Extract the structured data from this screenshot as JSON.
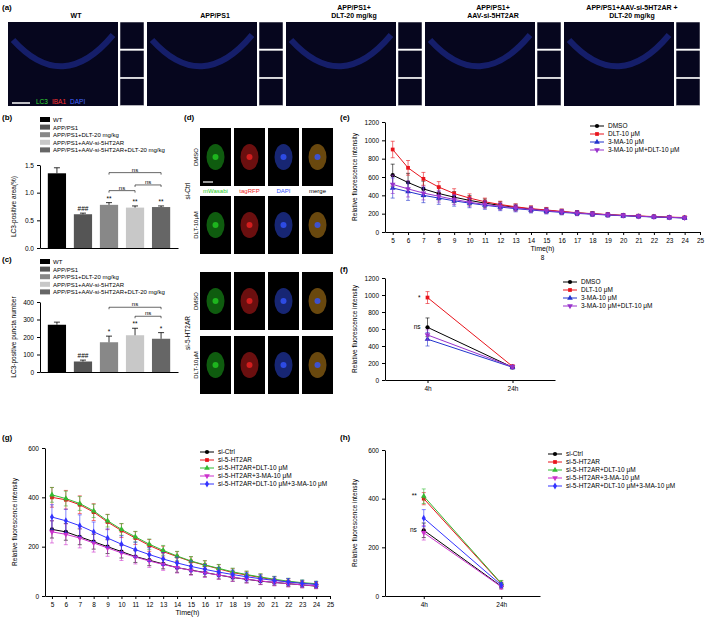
{
  "images": {
    "a": {
      "title": "(a)",
      "columns": [
        [
          "WT"
        ],
        [
          "APP/PS1"
        ],
        [
          "APP/PS1+",
          "DLT-20 mg/kg"
        ],
        [
          "APP/PS1+",
          "AAV-si-5HT2AR"
        ],
        [
          "APP/PS1+AAV-si-5HT2AR +",
          "DLT-20 mg/kg"
        ]
      ],
      "stains": [
        {
          "text": "LC3",
          "color": "#33dd33"
        },
        {
          "text": "IBA1",
          "color": "#ff3333"
        },
        {
          "text": "DAPI",
          "color": "#4466ff"
        }
      ]
    },
    "d": {
      "title": "(d)",
      "channels": [
        {
          "text": "mWasabi",
          "color": "#22cc22"
        },
        {
          "text": "tagRFP",
          "color": "#ee2222"
        },
        {
          "text": "DAPI",
          "color": "#3355ff"
        },
        {
          "text": "merge",
          "color": "#000000"
        }
      ],
      "groups": [
        "si-Ctrl",
        "si-5-HT2AR"
      ],
      "rows": [
        "DMSO",
        "DLT-10μM"
      ]
    }
  },
  "chart_data": [
    {
      "type": "bar",
      "title": "(b)",
      "y_label": "LC3-positive area(%)",
      "categories": [
        "WT",
        "APP/PS1",
        "APP/PS1+DLT-20 mg/kg",
        "APP/PS1+AAV-si-5HT2AR",
        "APP/PS1+AAV-si-5HT2AR+DLT-20 mg/kg"
      ],
      "values": [
        1.35,
        0.61,
        0.78,
        0.73,
        0.74
      ],
      "errors": [
        0.1,
        0.02,
        0.04,
        0.03,
        0.02
      ],
      "colors": [
        "#000000",
        "#555555",
        "#888888",
        "#c8c8c8",
        "#666666"
      ],
      "ylim": [
        0,
        1.5
      ],
      "yticks": [
        {
          "value": 0,
          "label": "0.0"
        },
        0.5,
        {
          "value": 1,
          "label": "1.0"
        },
        1.5
      ],
      "legend": "top",
      "tick_labels": "y",
      "annotations": [
        {
          "text": "###",
          "category": 1
        },
        {
          "text": "**",
          "category": 2
        },
        {
          "text": "**",
          "category": 3
        },
        {
          "text": "**",
          "category": 4
        },
        {
          "text": "ns",
          "from": 2,
          "to": 3
        },
        {
          "text": "ns",
          "from": 3,
          "to": 4
        },
        {
          "text": "ns",
          "from": 2,
          "to": 4
        }
      ]
    },
    {
      "type": "bar",
      "title": "(c)",
      "y_label": "LC3-positive puncta number",
      "categories": [
        "WT",
        "APP/PS1",
        "APP/PS1+DLT-20 mg/kg",
        "APP/PS1+AAV-si-5HT2AR",
        "APP/PS1+AAV-si-5HT2AR+DLT-20 mg/kg"
      ],
      "values": [
        270,
        60,
        170,
        210,
        190
      ],
      "errors": [
        15,
        8,
        35,
        40,
        35
      ],
      "colors": [
        "#000000",
        "#555555",
        "#888888",
        "#c8c8c8",
        "#666666"
      ],
      "ylim": [
        0,
        400
      ],
      "yticks": [
        0,
        100,
        200,
        300,
        400
      ],
      "legend": "top",
      "tick_labels": "y",
      "annotations": [
        {
          "text": "###",
          "category": 1
        },
        {
          "text": "*",
          "category": 2
        },
        {
          "text": "**",
          "category": 3
        },
        {
          "text": "*",
          "category": 4
        },
        {
          "text": "ns",
          "from": 3,
          "to": 4
        },
        {
          "text": "ns",
          "from": 2,
          "to": 4
        }
      ]
    },
    {
      "type": "line",
      "title": "(e)",
      "x_label": "Time(h)",
      "y_label": "Relative fluorescence intensity",
      "x": [
        5,
        6,
        7,
        8,
        9,
        10,
        11,
        12,
        13,
        14,
        15,
        16,
        17,
        18,
        19,
        20,
        21,
        22,
        23,
        24
      ],
      "xlim": [
        4.5,
        25
      ],
      "xticks": [
        5,
        6,
        7,
        8,
        9,
        10,
        11,
        12,
        13,
        14,
        15,
        16,
        17,
        18,
        19,
        20,
        21,
        22,
        23,
        24,
        25
      ],
      "ylim": [
        0,
        1200
      ],
      "yticks": [
        0,
        200,
        400,
        600,
        800,
        1000,
        1200
      ],
      "legend": "top-right",
      "series": [
        {
          "name": "DMSO",
          "color": "#000000",
          "marker": "circle",
          "values": [
            620,
            540,
            470,
            420,
            380,
            345,
            315,
            290,
            268,
            250,
            235,
            220,
            208,
            198,
            188,
            180,
            172,
            166,
            160,
            155
          ],
          "errors": [
            120,
            100,
            85,
            70,
            60,
            52,
            45,
            40,
            36,
            32,
            30,
            28,
            26,
            24,
            22,
            20,
            19,
            18,
            17,
            16
          ]
        },
        {
          "name": "DLT-10 μM",
          "color": "#e8141c",
          "marker": "square",
          "values": [
            900,
            700,
            580,
            490,
            420,
            370,
            330,
            300,
            275,
            255,
            240,
            225,
            210,
            200,
            190,
            182,
            175,
            168,
            162,
            158
          ],
          "errors": [
            90,
            80,
            70,
            60,
            52,
            46,
            40,
            36,
            32,
            30,
            28,
            26,
            24,
            22,
            21,
            20,
            19,
            18,
            17,
            16
          ]
        },
        {
          "name": "3-MA-10 μM",
          "color": "#2233cc",
          "marker": "triangle",
          "values": [
            480,
            440,
            400,
            370,
            340,
            315,
            292,
            272,
            255,
            240,
            226,
            214,
            203,
            194,
            185,
            177,
            170,
            164,
            158,
            153
          ],
          "errors": [
            110,
            95,
            80,
            68,
            58,
            50,
            44,
            39,
            35,
            32,
            29,
            27,
            25,
            23,
            21,
            20,
            19,
            18,
            17,
            16
          ]
        },
        {
          "name": "3-MA-10 μM+DLT-10 μM",
          "color": "#9933cc",
          "marker": "triangle-down",
          "values": [
            520,
            470,
            425,
            390,
            355,
            325,
            300,
            280,
            262,
            246,
            232,
            219,
            207,
            197,
            188,
            180,
            172,
            166,
            160,
            155
          ],
          "errors": [
            100,
            88,
            75,
            64,
            55,
            48,
            42,
            38,
            34,
            31,
            28,
            26,
            24,
            22,
            21,
            20,
            19,
            18,
            17,
            16
          ]
        }
      ],
      "annotations": [
        {
          "text": "8"
        }
      ]
    },
    {
      "type": "line",
      "title": "(f)",
      "y_label": "Relative fluorescence intensity",
      "categories": [
        "4h",
        "24h"
      ],
      "ylim": [
        0,
        1200
      ],
      "yticks": [
        0,
        200,
        400,
        600,
        800,
        1000,
        1200
      ],
      "legend": "right",
      "series": [
        {
          "name": "DMSO",
          "color": "#000000",
          "marker": "circle",
          "values": [
            620,
            150
          ],
          "errors": [
            110,
            20
          ]
        },
        {
          "name": "DLT-10 μM",
          "color": "#e8141c",
          "marker": "square",
          "values": [
            970,
            160
          ],
          "errors": [
            70,
            20
          ]
        },
        {
          "name": "3-MA-10 μM",
          "color": "#2233cc",
          "marker": "triangle",
          "values": [
            480,
            150
          ],
          "errors": [
            80,
            20
          ]
        },
        {
          "name": "3-MA-10 μM+DLT-10 μM",
          "color": "#9933cc",
          "marker": "triangle-down",
          "values": [
            530,
            155
          ],
          "errors": [
            60,
            20
          ]
        }
      ],
      "annotations": [
        {
          "text": "*",
          "series": 1,
          "index": 0
        },
        {
          "text": "ns",
          "series": 0,
          "index": 0
        }
      ]
    },
    {
      "type": "line",
      "title": "(g)",
      "x_label": "Time(h)",
      "y_label": "Relative fluorescence intensity",
      "x": [
        5,
        6,
        7,
        8,
        9,
        10,
        11,
        12,
        13,
        14,
        15,
        16,
        17,
        18,
        19,
        20,
        21,
        22,
        23,
        24
      ],
      "xlim": [
        4.5,
        25
      ],
      "xticks": [
        5,
        6,
        7,
        8,
        9,
        10,
        11,
        12,
        13,
        14,
        15,
        16,
        17,
        18,
        19,
        20,
        21,
        22,
        23,
        24,
        25
      ],
      "ylim": [
        0,
        600
      ],
      "yticks": [
        0,
        200,
        400,
        600
      ],
      "legend": "top-right",
      "series": [
        {
          "name": "si-Ctrl",
          "color": "#000000",
          "marker": "circle",
          "values": [
            270,
            260,
            240,
            220,
            200,
            180,
            160,
            145,
            130,
            115,
            105,
            95,
            85,
            75,
            68,
            60,
            55,
            50,
            45,
            40
          ],
          "errors": [
            35,
            34,
            32,
            30,
            28,
            26,
            24,
            22,
            20,
            19,
            18,
            17,
            16,
            15,
            14,
            13,
            12,
            12,
            11,
            10
          ]
        },
        {
          "name": "si-5-HT2AR",
          "color": "#e8141c",
          "marker": "square",
          "values": [
            400,
            390,
            370,
            340,
            300,
            265,
            235,
            205,
            180,
            160,
            140,
            125,
            110,
            95,
            85,
            75,
            65,
            58,
            52,
            48
          ],
          "errors": [
            40,
            38,
            36,
            34,
            31,
            28,
            26,
            24,
            22,
            20,
            19,
            18,
            17,
            16,
            15,
            14,
            13,
            12,
            11,
            10
          ]
        },
        {
          "name": "si-5-HT2AR+DLT-10 μM",
          "color": "#33bb33",
          "marker": "triangle",
          "values": [
            410,
            395,
            375,
            345,
            305,
            270,
            240,
            210,
            185,
            162,
            142,
            126,
            112,
            98,
            87,
            77,
            68,
            60,
            54,
            50
          ],
          "errors": [
            30,
            30,
            28,
            27,
            25,
            24,
            22,
            21,
            20,
            19,
            18,
            17,
            16,
            15,
            14,
            13,
            12,
            12,
            11,
            10
          ]
        },
        {
          "name": "si-5-HT2AR+3-MA-10 μM",
          "color": "#cc33cc",
          "marker": "triangle-down",
          "values": [
            260,
            250,
            235,
            215,
            195,
            175,
            158,
            142,
            128,
            115,
            104,
            94,
            85,
            76,
            68,
            61,
            55,
            50,
            45,
            41
          ],
          "errors": [
            45,
            42,
            40,
            37,
            34,
            31,
            28,
            26,
            24,
            22,
            20,
            19,
            18,
            17,
            16,
            15,
            14,
            13,
            12,
            11
          ]
        },
        {
          "name": "si-5-HT2AR+DLT-10 μM+3-MA-10 μM",
          "color": "#3333ff",
          "marker": "diamond",
          "values": [
            320,
            305,
            285,
            260,
            235,
            210,
            188,
            168,
            150,
            134,
            120,
            108,
            97,
            87,
            78,
            70,
            63,
            57,
            51,
            47
          ],
          "errors": [
            50,
            47,
            44,
            40,
            37,
            34,
            31,
            28,
            26,
            24,
            22,
            20,
            19,
            18,
            17,
            16,
            15,
            14,
            13,
            12
          ]
        }
      ]
    },
    {
      "type": "line",
      "title": "(h)",
      "y_label": "Relative fluorescence intensity",
      "categories": [
        "4h",
        "24h"
      ],
      "ylim": [
        0,
        600
      ],
      "yticks": [
        0,
        200,
        400,
        600
      ],
      "legend": "right",
      "series": [
        {
          "name": "si-Ctrl",
          "color": "#000000",
          "marker": "circle",
          "values": [
            270,
            40
          ],
          "errors": [
            30,
            10
          ]
        },
        {
          "name": "si-5-HT2AR",
          "color": "#e8141c",
          "marker": "square",
          "values": [
            400,
            50
          ],
          "errors": [
            25,
            12
          ]
        },
        {
          "name": "si-5-HT2AR+DLT-10 μM",
          "color": "#33bb33",
          "marker": "triangle",
          "values": [
            410,
            52
          ],
          "errors": [
            30,
            12
          ]
        },
        {
          "name": "si-5-HT2AR+3-MA-10 μM",
          "color": "#cc33cc",
          "marker": "triangle-down",
          "values": [
            260,
            38
          ],
          "errors": [
            30,
            10
          ]
        },
        {
          "name": "si-5-HT2AR+DLT-10 μM+3-MA-10 μM",
          "color": "#3333ff",
          "marker": "diamond",
          "values": [
            320,
            45
          ],
          "errors": [
            35,
            10
          ]
        }
      ],
      "annotations": [
        {
          "text": "**",
          "series": 2,
          "index": 0
        },
        {
          "text": "ns",
          "series": 0,
          "index": 0
        }
      ]
    }
  ]
}
